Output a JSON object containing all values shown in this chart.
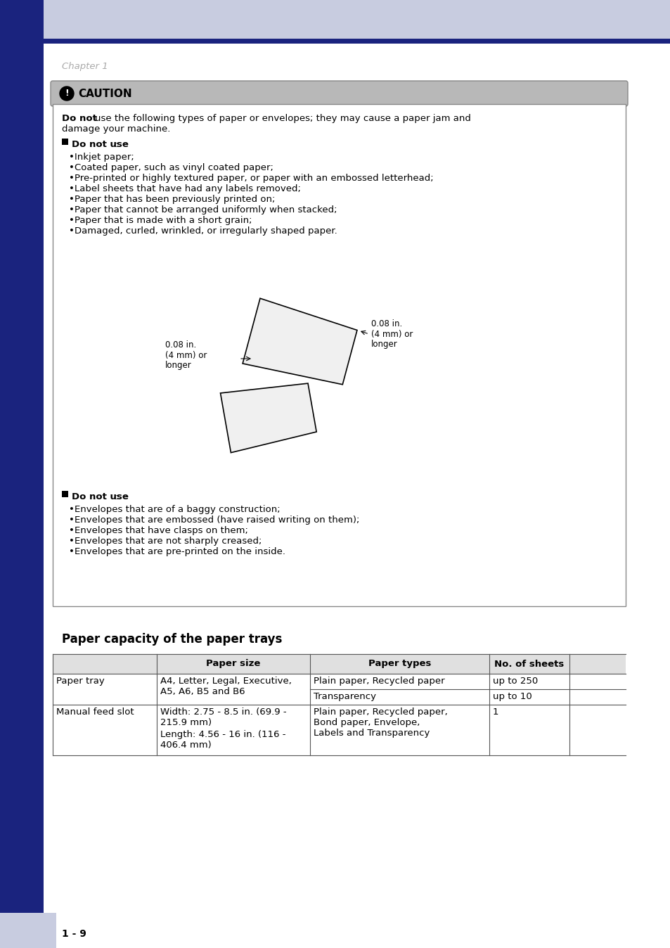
{
  "page_bg": "#ffffff",
  "header_bg": "#c8cce0",
  "sidebar_dark": "#1a237e",
  "chapter_text": "Chapter 1",
  "chapter_color": "#aaaaaa",
  "caution_bg": "#b8b8b8",
  "caution_title": "CAUTION",
  "caution_border": "#888888",
  "section_title": "Paper capacity of the paper trays",
  "table_header_bg": "#e0e0e0",
  "table_border": "#555555",
  "page_number": "1 - 9",
  "footer_bar_bg": "#c8cce0",
  "paper_items": [
    "Inkjet paper;",
    "Coated paper, such as vinyl coated paper;",
    "Pre-printed or highly textured paper, or paper with an embossed letterhead;",
    "Label sheets that have had any labels removed;",
    "Paper that has been previously printed on;",
    "Paper that cannot be arranged uniformly when stacked;",
    "Paper that is made with a short grain;",
    "Damaged, curled, wrinkled, or irregularly shaped paper."
  ],
  "envelope_items": [
    "Envelopes that are of a baggy construction;",
    "Envelopes that are embossed (have raised writing on them);",
    "Envelopes that have clasps on them;",
    "Envelopes that are not sharply creased;",
    "Envelopes that are pre-printed on the inside."
  ]
}
